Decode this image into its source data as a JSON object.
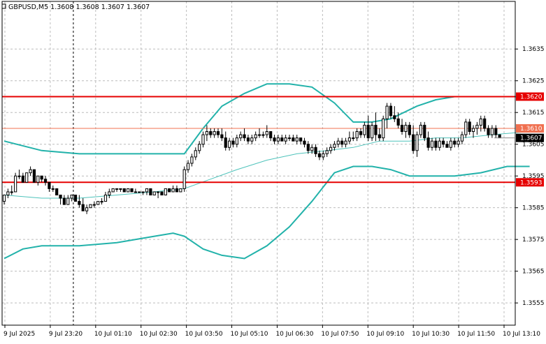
{
  "chart_data": {
    "type": "candlestick",
    "title": "GBPUSD,M5  1.3608 1.3608 1.3607 1.3607",
    "symbol": "GBPUSD",
    "timeframe": "M5",
    "ohlc_header": [
      "1.3608",
      "1.3608",
      "1.3607",
      "1.3607"
    ],
    "ylim": [
      1.3548,
      1.365
    ],
    "y_ticks": [
      "1.3635",
      "1.3625",
      "1.3615",
      "1.3605",
      "1.3595",
      "1.3585",
      "1.3575",
      "1.3565",
      "1.3555"
    ],
    "x_ticks": [
      "9 Jul 2025",
      "9 Jul 23:20",
      "10 Jul 01:10",
      "10 Jul 02:30",
      "10 Jul 03:50",
      "10 Jul 05:10",
      "10 Jul 06:30",
      "10 Jul 07:50",
      "10 Jul 09:10",
      "10 Jul 10:30",
      "10 Jul 11:50",
      "10 Jul 13:10"
    ],
    "grid": true,
    "levels": [
      {
        "price": 1.362,
        "label": "1.3620",
        "color": "#e60000"
      },
      {
        "price": 1.361,
        "label": "1.3610",
        "color": "#f07050"
      },
      {
        "price": 1.3593,
        "label": "1.3593",
        "color": "#e60000"
      }
    ],
    "current_price": {
      "price": 1.3607,
      "label": "1.3607"
    },
    "candles": [
      [
        1.3587,
        1.3589,
        1.3586,
        1.3589
      ],
      [
        1.3589,
        1.3591,
        1.3588,
        1.359
      ],
      [
        1.359,
        1.3592,
        1.3589,
        1.359
      ],
      [
        1.359,
        1.3596,
        1.359,
        1.3595
      ],
      [
        1.3595,
        1.3597,
        1.3594,
        1.3595
      ],
      [
        1.3595,
        1.3596,
        1.3593,
        1.3593
      ],
      [
        1.3593,
        1.3596,
        1.3593,
        1.3596
      ],
      [
        1.3596,
        1.3598,
        1.3595,
        1.3597
      ],
      [
        1.3597,
        1.3597,
        1.3593,
        1.3593
      ],
      [
        1.3593,
        1.3595,
        1.3592,
        1.3595
      ],
      [
        1.3595,
        1.3595,
        1.3593,
        1.3594
      ],
      [
        1.3594,
        1.3595,
        1.3592,
        1.3593
      ],
      [
        1.3593,
        1.3593,
        1.359,
        1.3591
      ],
      [
        1.3591,
        1.3592,
        1.359,
        1.3591
      ],
      [
        1.3591,
        1.3591,
        1.3589,
        1.3589
      ],
      [
        1.3589,
        1.3589,
        1.3586,
        1.3588
      ],
      [
        1.3588,
        1.3589,
        1.3586,
        1.3586
      ],
      [
        1.3586,
        1.3589,
        1.3586,
        1.3588
      ],
      [
        1.3588,
        1.3589,
        1.3587,
        1.3589
      ],
      [
        1.3589,
        1.3589,
        1.3587,
        1.3587
      ],
      [
        1.3587,
        1.3589,
        1.3585,
        1.3586
      ],
      [
        1.3586,
        1.3588,
        1.3584,
        1.3584
      ],
      [
        1.3584,
        1.3586,
        1.3583,
        1.3585
      ],
      [
        1.3585,
        1.3586,
        1.3585,
        1.3586
      ],
      [
        1.3586,
        1.3587,
        1.3585,
        1.3586
      ],
      [
        1.3586,
        1.3587,
        1.3586,
        1.3587
      ],
      [
        1.3587,
        1.3588,
        1.3586,
        1.3587
      ],
      [
        1.3587,
        1.359,
        1.3587,
        1.3589
      ],
      [
        1.3589,
        1.3591,
        1.3588,
        1.359
      ],
      [
        1.359,
        1.3591,
        1.359,
        1.3591
      ],
      [
        1.3591,
        1.3591,
        1.359,
        1.3591
      ],
      [
        1.3591,
        1.3591,
        1.359,
        1.3591
      ],
      [
        1.3591,
        1.3591,
        1.359,
        1.359
      ],
      [
        1.359,
        1.3591,
        1.359,
        1.3591
      ],
      [
        1.3591,
        1.3591,
        1.359,
        1.359
      ],
      [
        1.359,
        1.3591,
        1.359,
        1.359
      ],
      [
        1.359,
        1.359,
        1.359,
        1.359
      ],
      [
        1.359,
        1.359,
        1.3589,
        1.359
      ],
      [
        1.359,
        1.3591,
        1.3589,
        1.3591
      ],
      [
        1.3591,
        1.3591,
        1.3589,
        1.3589
      ],
      [
        1.3589,
        1.359,
        1.3589,
        1.359
      ],
      [
        1.359,
        1.359,
        1.3588,
        1.359
      ],
      [
        1.359,
        1.359,
        1.3589,
        1.3589
      ],
      [
        1.3589,
        1.3591,
        1.3589,
        1.3591
      ],
      [
        1.3591,
        1.3591,
        1.359,
        1.359
      ],
      [
        1.359,
        1.3592,
        1.359,
        1.3591
      ],
      [
        1.3591,
        1.3592,
        1.359,
        1.359
      ],
      [
        1.359,
        1.3591,
        1.359,
        1.3591
      ],
      [
        1.3591,
        1.3598,
        1.359,
        1.3597
      ],
      [
        1.3597,
        1.36,
        1.3596,
        1.3599
      ],
      [
        1.3599,
        1.3602,
        1.3598,
        1.3601
      ],
      [
        1.3601,
        1.3604,
        1.36,
        1.3603
      ],
      [
        1.3603,
        1.3606,
        1.3602,
        1.3605
      ],
      [
        1.3605,
        1.3609,
        1.3604,
        1.3608
      ],
      [
        1.3608,
        1.3611,
        1.3606,
        1.3609
      ],
      [
        1.3609,
        1.361,
        1.3607,
        1.3608
      ],
      [
        1.3608,
        1.361,
        1.3607,
        1.3609
      ],
      [
        1.3609,
        1.361,
        1.3607,
        1.3608
      ],
      [
        1.3608,
        1.361,
        1.3606,
        1.3607
      ],
      [
        1.3607,
        1.3609,
        1.3603,
        1.3604
      ],
      [
        1.3604,
        1.3607,
        1.3603,
        1.3606
      ],
      [
        1.3606,
        1.3607,
        1.3604,
        1.3605
      ],
      [
        1.3605,
        1.3608,
        1.3604,
        1.3607
      ],
      [
        1.3607,
        1.3609,
        1.3606,
        1.3608
      ],
      [
        1.3608,
        1.361,
        1.3606,
        1.3607
      ],
      [
        1.3607,
        1.3608,
        1.3605,
        1.3606
      ],
      [
        1.3606,
        1.3608,
        1.3605,
        1.3607
      ],
      [
        1.3607,
        1.3609,
        1.3606,
        1.3608
      ],
      [
        1.3608,
        1.361,
        1.3607,
        1.3608
      ],
      [
        1.3608,
        1.3609,
        1.3607,
        1.3608
      ],
      [
        1.3608,
        1.3611,
        1.3607,
        1.3609
      ],
      [
        1.3609,
        1.3609,
        1.3606,
        1.3607
      ],
      [
        1.3607,
        1.3608,
        1.3605,
        1.3606
      ],
      [
        1.3606,
        1.3608,
        1.3605,
        1.3607
      ],
      [
        1.3607,
        1.3608,
        1.3606,
        1.3606
      ],
      [
        1.3606,
        1.3608,
        1.3605,
        1.3607
      ],
      [
        1.3607,
        1.3608,
        1.3606,
        1.3607
      ],
      [
        1.3607,
        1.3608,
        1.3606,
        1.3606
      ],
      [
        1.3606,
        1.3608,
        1.3605,
        1.3607
      ],
      [
        1.3607,
        1.3607,
        1.3605,
        1.3606
      ],
      [
        1.3606,
        1.3607,
        1.3604,
        1.3605
      ],
      [
        1.3605,
        1.3606,
        1.3602,
        1.3603
      ],
      [
        1.3603,
        1.3605,
        1.3602,
        1.3604
      ],
      [
        1.3604,
        1.3605,
        1.3601,
        1.3602
      ],
      [
        1.3602,
        1.3603,
        1.36,
        1.3601
      ],
      [
        1.3601,
        1.3603,
        1.36,
        1.3602
      ],
      [
        1.3602,
        1.3604,
        1.3601,
        1.3603
      ],
      [
        1.3603,
        1.3605,
        1.3602,
        1.3604
      ],
      [
        1.3604,
        1.3606,
        1.3603,
        1.3605
      ],
      [
        1.3605,
        1.3607,
        1.3604,
        1.3606
      ],
      [
        1.3606,
        1.3607,
        1.3604,
        1.3605
      ],
      [
        1.3605,
        1.3607,
        1.3604,
        1.3606
      ],
      [
        1.3606,
        1.3609,
        1.3605,
        1.3607
      ],
      [
        1.3607,
        1.3609,
        1.3606,
        1.3607
      ],
      [
        1.3607,
        1.361,
        1.3606,
        1.3609
      ],
      [
        1.3609,
        1.361,
        1.3607,
        1.3608
      ],
      [
        1.3608,
        1.3612,
        1.3607,
        1.3611
      ],
      [
        1.3611,
        1.3614,
        1.3606,
        1.3607
      ],
      [
        1.3607,
        1.3612,
        1.3606,
        1.3611
      ],
      [
        1.3611,
        1.3615,
        1.3606,
        1.3608
      ],
      [
        1.3608,
        1.361,
        1.3606,
        1.3607
      ],
      [
        1.3607,
        1.3614,
        1.3606,
        1.3613
      ],
      [
        1.3613,
        1.3618,
        1.361,
        1.3617
      ],
      [
        1.3617,
        1.3618,
        1.3613,
        1.3614
      ],
      [
        1.3614,
        1.3617,
        1.3612,
        1.3613
      ],
      [
        1.3613,
        1.3615,
        1.361,
        1.3611
      ],
      [
        1.3611,
        1.3613,
        1.3608,
        1.3609
      ],
      [
        1.3609,
        1.3612,
        1.3607,
        1.3611
      ],
      [
        1.3611,
        1.3612,
        1.3607,
        1.3608
      ],
      [
        1.3608,
        1.3611,
        1.3602,
        1.3603
      ],
      [
        1.3603,
        1.3609,
        1.3601,
        1.3608
      ],
      [
        1.3608,
        1.3612,
        1.3607,
        1.3611
      ],
      [
        1.3611,
        1.3612,
        1.3606,
        1.3607
      ],
      [
        1.3607,
        1.3609,
        1.3603,
        1.3604
      ],
      [
        1.3604,
        1.3607,
        1.3603,
        1.3606
      ],
      [
        1.3606,
        1.3607,
        1.3603,
        1.3604
      ],
      [
        1.3604,
        1.3607,
        1.3603,
        1.3606
      ],
      [
        1.3606,
        1.3607,
        1.3604,
        1.3605
      ],
      [
        1.3605,
        1.3606,
        1.3604,
        1.3604
      ],
      [
        1.3604,
        1.3607,
        1.3603,
        1.3606
      ],
      [
        1.3606,
        1.3607,
        1.3604,
        1.3605
      ],
      [
        1.3605,
        1.3607,
        1.3604,
        1.3606
      ],
      [
        1.3606,
        1.3609,
        1.3605,
        1.3608
      ],
      [
        1.3608,
        1.3613,
        1.3607,
        1.3612
      ],
      [
        1.3612,
        1.3613,
        1.3608,
        1.3609
      ],
      [
        1.3609,
        1.3611,
        1.3607,
        1.361
      ],
      [
        1.361,
        1.3612,
        1.3608,
        1.3611
      ],
      [
        1.3611,
        1.3614,
        1.3609,
        1.3613
      ],
      [
        1.3613,
        1.3614,
        1.3609,
        1.361
      ],
      [
        1.361,
        1.3611,
        1.3607,
        1.3608
      ],
      [
        1.3608,
        1.3611,
        1.3607,
        1.361
      ],
      [
        1.361,
        1.3611,
        1.3607,
        1.3608
      ],
      [
        1.3608,
        1.3608,
        1.3607,
        1.3607
      ]
    ],
    "bollinger_upper": [
      [
        0,
        1.3606
      ],
      [
        10,
        1.3603
      ],
      [
        20,
        1.3602
      ],
      [
        30,
        1.3602
      ],
      [
        40,
        1.3602
      ],
      [
        48,
        1.3602
      ],
      [
        53,
        1.361
      ],
      [
        58,
        1.3617
      ],
      [
        64,
        1.3621
      ],
      [
        70,
        1.3624
      ],
      [
        76,
        1.3624
      ],
      [
        82,
        1.3623
      ],
      [
        88,
        1.3618
      ],
      [
        93,
        1.3612
      ],
      [
        98,
        1.3612
      ],
      [
        103,
        1.3613
      ],
      [
        110,
        1.3617
      ],
      [
        115,
        1.3619
      ],
      [
        120,
        1.362
      ],
      [
        127,
        1.362
      ],
      [
        134,
        1.362
      ],
      [
        140,
        1.362
      ]
    ],
    "bollinger_middle": [
      [
        0,
        1.3589
      ],
      [
        10,
        1.3588
      ],
      [
        20,
        1.3588
      ],
      [
        30,
        1.3589
      ],
      [
        40,
        1.359
      ],
      [
        48,
        1.3591
      ],
      [
        55,
        1.3594
      ],
      [
        62,
        1.3597
      ],
      [
        70,
        1.36
      ],
      [
        78,
        1.3602
      ],
      [
        86,
        1.3603
      ],
      [
        93,
        1.3604
      ],
      [
        100,
        1.3606
      ],
      [
        108,
        1.3606
      ],
      [
        115,
        1.3607
      ],
      [
        122,
        1.3607
      ],
      [
        130,
        1.3608
      ],
      [
        140,
        1.3609
      ]
    ],
    "bollinger_lower": [
      [
        0,
        1.3569
      ],
      [
        5,
        1.3572
      ],
      [
        10,
        1.3573
      ],
      [
        20,
        1.3573
      ],
      [
        30,
        1.3574
      ],
      [
        40,
        1.3576
      ],
      [
        45,
        1.3577
      ],
      [
        48,
        1.3576
      ],
      [
        53,
        1.3572
      ],
      [
        58,
        1.357
      ],
      [
        64,
        1.3569
      ],
      [
        70,
        1.3573
      ],
      [
        76,
        1.3579
      ],
      [
        82,
        1.3587
      ],
      [
        88,
        1.3596
      ],
      [
        93,
        1.3598
      ],
      [
        98,
        1.3598
      ],
      [
        103,
        1.3597
      ],
      [
        108,
        1.3595
      ],
      [
        113,
        1.3595
      ],
      [
        120,
        1.3595
      ],
      [
        127,
        1.3596
      ],
      [
        134,
        1.3598
      ],
      [
        140,
        1.3598
      ]
    ],
    "colors": {
      "bollinger": "#22b2aa",
      "bollinger_middle": "#4ec3bb",
      "level_strong": "#e60000",
      "level_soft": "#f07050",
      "grid": "#bcbcbc",
      "candle": "#000000",
      "current_price_bg": "#000000",
      "current_price_text": "#ffffff"
    }
  }
}
